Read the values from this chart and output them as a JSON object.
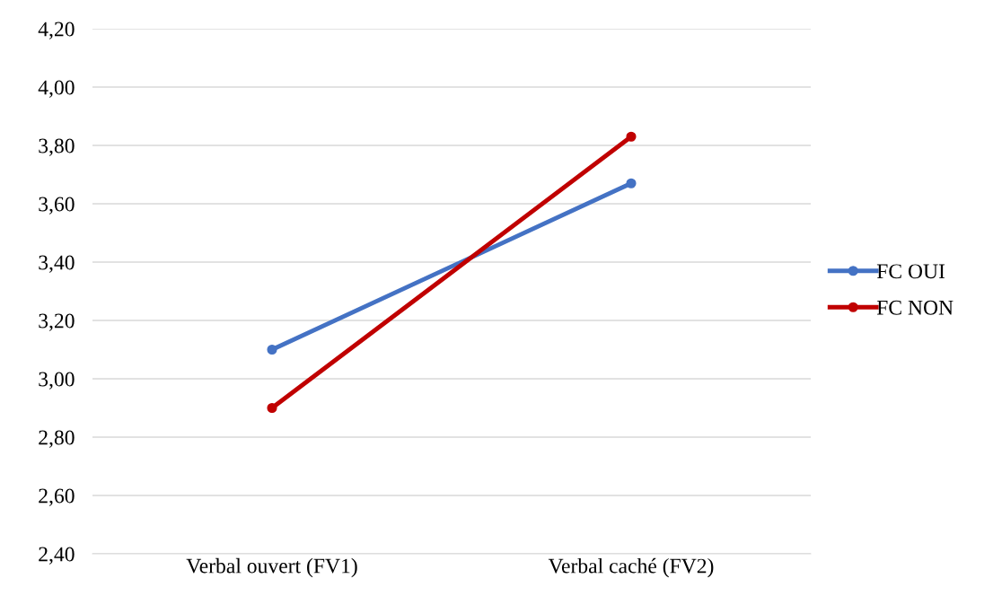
{
  "chart_data": {
    "type": "line",
    "categories": [
      "Verbal ouvert (FV1)",
      "Verbal caché (FV2)"
    ],
    "series": [
      {
        "name": "FC OUI",
        "color": "#4472c4",
        "values": [
          3.1,
          3.67
        ]
      },
      {
        "name": "FC NON",
        "color": "#c00000",
        "values": [
          2.9,
          3.83
        ]
      }
    ],
    "ylim": [
      2.4,
      4.2
    ],
    "yticks": [
      {
        "value": 2.4,
        "label": "2,40"
      },
      {
        "value": 2.6,
        "label": "2,60"
      },
      {
        "value": 2.8,
        "label": "2,80"
      },
      {
        "value": 3.0,
        "label": "3,00"
      },
      {
        "value": 3.2,
        "label": "3,20"
      },
      {
        "value": 3.4,
        "label": "3,40"
      },
      {
        "value": 3.6,
        "label": "3,60"
      },
      {
        "value": 3.8,
        "label": "3,80"
      },
      {
        "value": 4.0,
        "label": "4,00"
      },
      {
        "value": 4.2,
        "label": "4,20"
      }
    ],
    "grid": "y",
    "legend": "right",
    "marker": "circle",
    "line_style": "solid"
  }
}
